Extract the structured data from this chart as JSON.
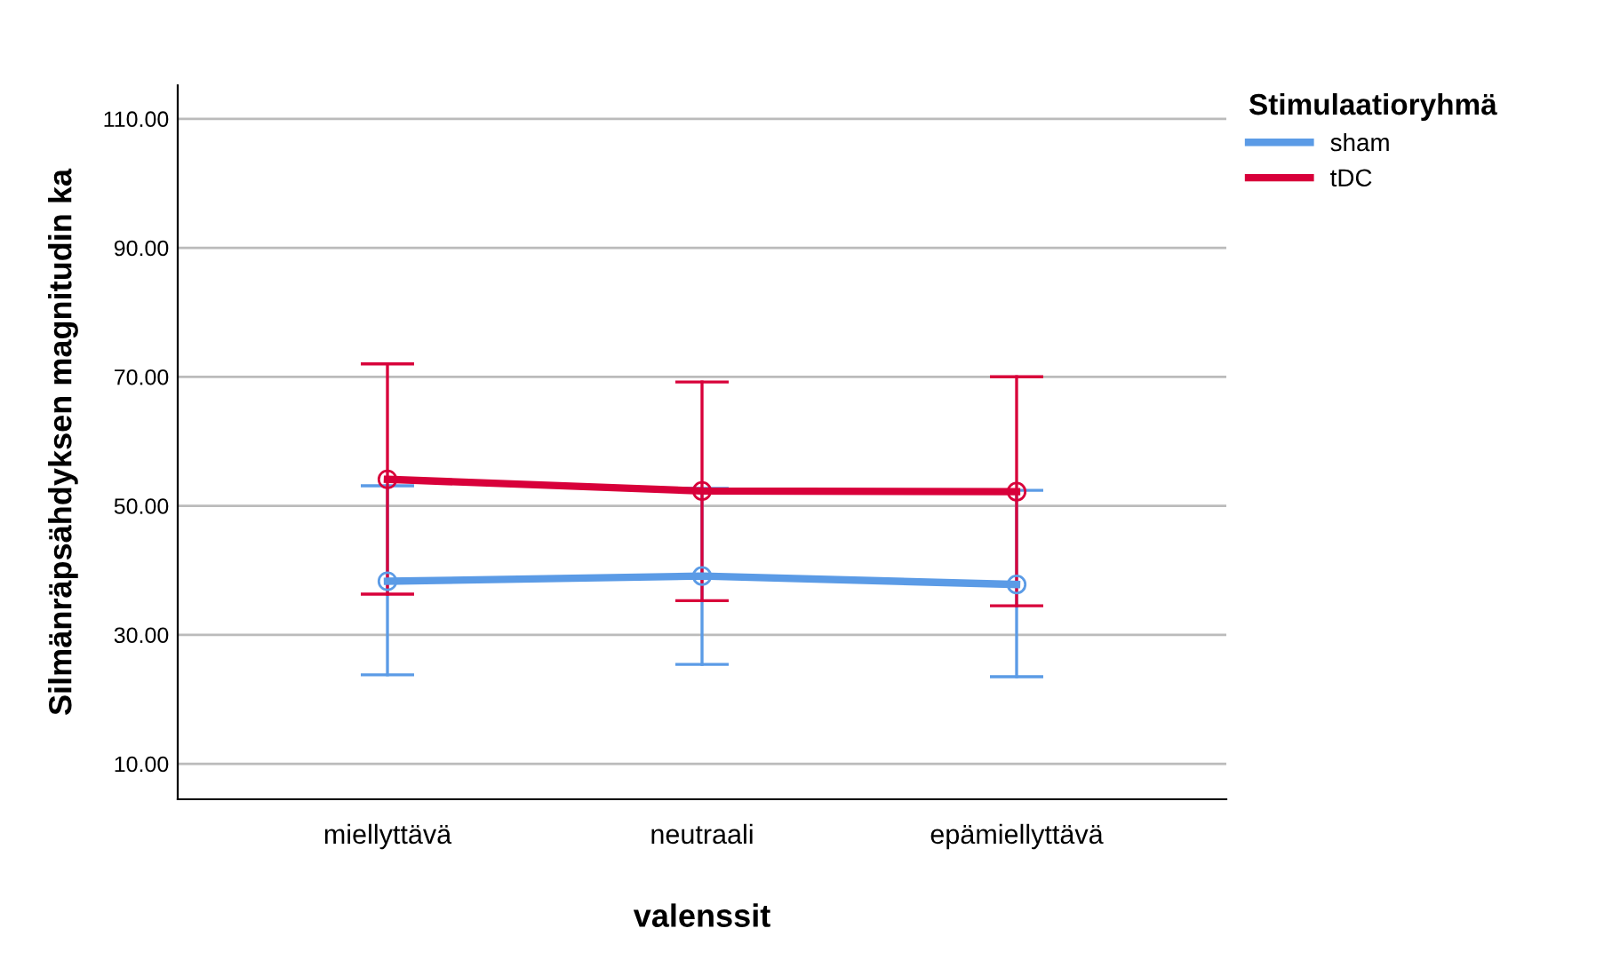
{
  "chart_data": {
    "type": "line",
    "xlabel": "valenssit",
    "ylabel": "Silmänräpsähdyksen magnitudin ka",
    "legend_title": "Stimulaatioryhmä",
    "legend": "top right",
    "grid": "y",
    "marker": "circle",
    "line_style": "solid",
    "categories": [
      "miellyttävä",
      "neutraali",
      "epämiellyttävä"
    ],
    "ylim": [
      4.5,
      115.2
    ],
    "yticks": [
      {
        "value": 10,
        "label": "10.00"
      },
      {
        "value": 30,
        "label": "30.00"
      },
      {
        "value": 50,
        "label": "50.00"
      },
      {
        "value": 70,
        "label": "70.00"
      },
      {
        "value": 90,
        "label": "90.00"
      },
      {
        "value": 110,
        "label": "110.00"
      }
    ],
    "series": [
      {
        "name": "sham",
        "color": "#5b9be6",
        "values": [
          38.3,
          39.1,
          37.8
        ],
        "errors": [
          [
            23.8,
            53.1
          ],
          [
            25.4,
            52.7
          ],
          [
            23.5,
            52.4
          ]
        ]
      },
      {
        "name": "tDC",
        "color": "#d8003a",
        "values": [
          54.1,
          52.3,
          52.2
        ],
        "errors": [
          [
            36.3,
            72.0
          ],
          [
            35.3,
            69.2
          ],
          [
            34.5,
            70.0
          ]
        ]
      }
    ]
  }
}
